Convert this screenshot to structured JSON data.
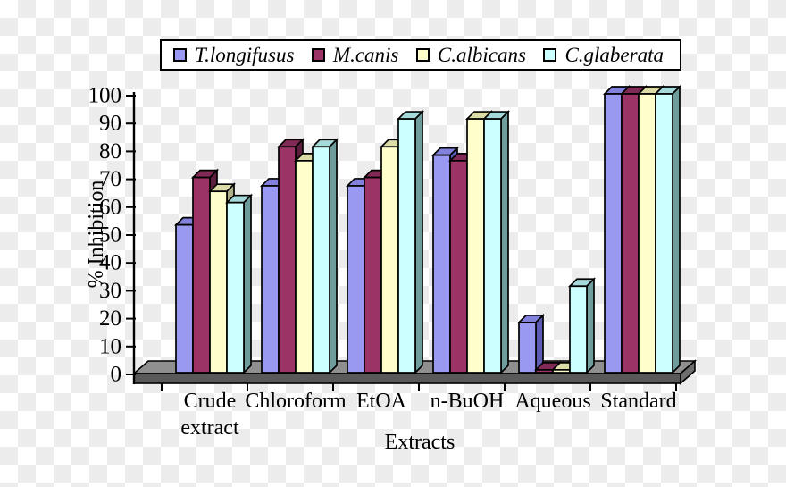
{
  "chart_data": {
    "type": "bar",
    "style": "3d-grouped-columns",
    "title": "",
    "xlabel": "Extracts",
    "ylabel": "% Inhibition",
    "ylim": [
      0,
      100
    ],
    "y_ticks": [
      0,
      10,
      20,
      30,
      40,
      50,
      60,
      70,
      80,
      90,
      100
    ],
    "categories": [
      "Crude extract",
      "Chloroform",
      "EtOA",
      "n-BuOH",
      "Aqueous",
      "Standard"
    ],
    "category_lines": [
      [
        "Crude",
        "extract"
      ],
      [
        "Chloroform"
      ],
      [
        "EtOA"
      ],
      [
        "n-BuOH"
      ],
      [
        "Aqueous"
      ],
      [
        "Standard"
      ]
    ],
    "legend_position": "top",
    "grid": false,
    "series": [
      {
        "name": "T.longifusus",
        "color": "#9999F2",
        "top_color": "#8282DC",
        "side_color": "#5C5CB4",
        "values": [
          53,
          67,
          67,
          78,
          18,
          100
        ]
      },
      {
        "name": "M.canis",
        "color": "#9C3367",
        "top_color": "#802A55",
        "side_color": "#5C1E3C",
        "values": [
          70,
          81,
          70,
          76,
          1,
          100
        ]
      },
      {
        "name": "C.albicans",
        "color": "#FFFFCC",
        "top_color": "#DCDCA8",
        "side_color": "#B0B088",
        "values": [
          65,
          76,
          81,
          91,
          1,
          100
        ]
      },
      {
        "name": "C.glaberata",
        "color": "#CCFFFF",
        "top_color": "#A6DADA",
        "side_color": "#6F9C9C",
        "values": [
          61,
          81,
          91,
          91,
          31,
          100
        ]
      }
    ]
  },
  "colors": {
    "axis": "#000000",
    "floor_top": "#8F8F8F",
    "floor_front": "#595959",
    "floor_side": "#6E6E6E",
    "legend_border": "#000000",
    "legend_bg": "#FFFFFF",
    "checker_light": "#FFFFFF",
    "checker_dark": "#ECECEC"
  }
}
